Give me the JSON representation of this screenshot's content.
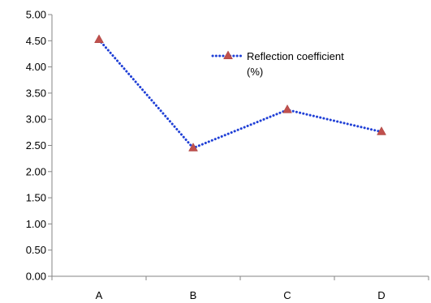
{
  "chart_data": {
    "type": "line",
    "categories": [
      "A",
      "B",
      "C",
      "D"
    ],
    "series": [
      {
        "name": "Reflection coefficient (%)",
        "name_lines": [
          "Reflection coefficient",
          "(%)"
        ],
        "values": [
          4.52,
          2.45,
          3.18,
          2.76
        ],
        "line_color": "#1F3FD6",
        "line_style": "dotted",
        "marker": "triangle",
        "marker_color": "#C0504D"
      }
    ],
    "ylim": [
      0,
      5
    ],
    "yticks": [
      "0.00",
      "0.50",
      "1.00",
      "1.50",
      "2.00",
      "2.50",
      "3.00",
      "3.50",
      "4.00",
      "4.50",
      "5.00"
    ],
    "grid": false,
    "legend_position": "top-right"
  }
}
